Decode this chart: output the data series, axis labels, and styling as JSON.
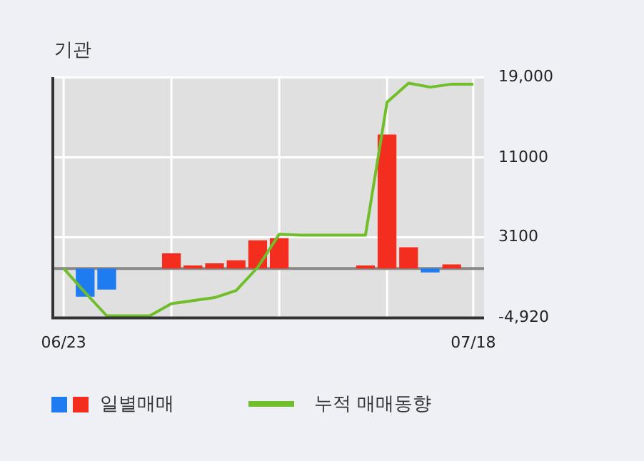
{
  "chart_data": {
    "type": "bar",
    "title": "기관",
    "categories": [
      "06/23",
      null,
      null,
      null,
      null,
      null,
      null,
      null,
      null,
      null,
      null,
      null,
      null,
      null,
      null,
      null,
      null,
      null,
      null,
      "07/18"
    ],
    "series": [
      {
        "name": "일별매매",
        "colors": [
          "#f42e1e",
          "#1e7cf0",
          "#1e7cf0",
          "#f42e1e",
          "#f42e1e",
          "#f42e1e",
          "#f42e1e",
          "#f42e1e",
          "#f42e1e",
          "#f42e1e",
          "#f42e1e",
          "#f42e1e",
          "#f42e1e",
          "#f42e1e",
          "#f42e1e",
          "#f42e1e",
          "#f42e1e",
          "#1e7cf0",
          "#f42e1e",
          "#f42e1e"
        ],
        "values": [
          0,
          -2800,
          -2100,
          0,
          0,
          1500,
          300,
          500,
          800,
          2800,
          3000,
          0,
          0,
          0,
          300,
          13300,
          2100,
          -400,
          400,
          0
        ]
      },
      {
        "type": "line",
        "name": "누적 매매동향",
        "color": "#6fbe2a",
        "values": [
          0,
          -2400,
          -4700,
          -4700,
          -4700,
          -3500,
          -3200,
          -2900,
          -2200,
          100,
          3400,
          3300,
          3300,
          3300,
          3300,
          16500,
          18400,
          18000,
          18300,
          18300
        ]
      }
    ],
    "ylim": [
      -4920,
      19000
    ],
    "yticks": [
      {
        "value": 19000,
        "label": "19,000"
      },
      11000,
      3100,
      {
        "value": -4920,
        "label": "-4,920"
      }
    ],
    "ref_lines": [
      {
        "axis": "y",
        "value": 0,
        "color": "#888888"
      }
    ],
    "grid": true,
    "legend": "bottom",
    "marker": "none",
    "line_style": "solid"
  }
}
